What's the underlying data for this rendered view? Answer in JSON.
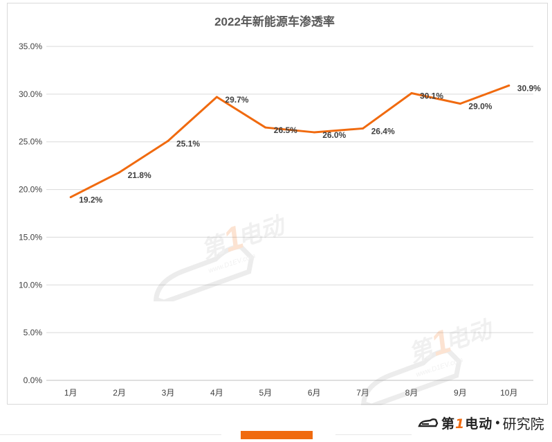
{
  "chart_data": {
    "type": "line",
    "title": "2022年新能源车渗透率",
    "categories": [
      "1月",
      "2月",
      "3月",
      "4月",
      "5月",
      "6月",
      "7月",
      "8月",
      "9月",
      "10月"
    ],
    "values": [
      19.2,
      21.8,
      25.1,
      29.7,
      26.5,
      26.0,
      26.4,
      30.1,
      29.0,
      30.9
    ],
    "data_labels": [
      "19.2%",
      "21.8%",
      "25.1%",
      "29.7%",
      "26.5%",
      "26.0%",
      "26.4%",
      "30.1%",
      "29.0%",
      "30.9%"
    ],
    "y_ticks": [
      "0.0%",
      "5.0%",
      "10.0%",
      "15.0%",
      "20.0%",
      "25.0%",
      "30.0%",
      "35.0%"
    ],
    "ylim": [
      0,
      35
    ],
    "grid": true,
    "line_color": "#f06a0f"
  },
  "watermark": {
    "text_a": "第",
    "text_one": "1",
    "text_b": "电动",
    "url": "www.D1EV.com"
  },
  "footer": {
    "brand_a": "第",
    "brand_one": "1",
    "brand_b": "电动",
    "separator": "•",
    "brand_sub": "研究院"
  }
}
